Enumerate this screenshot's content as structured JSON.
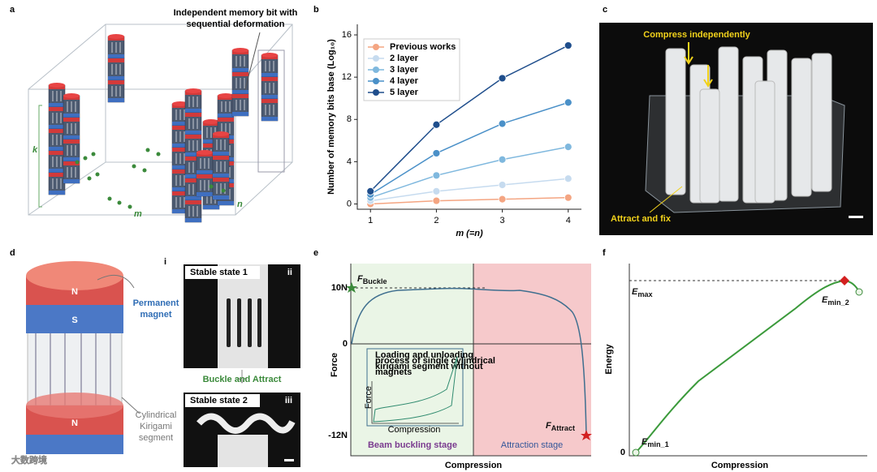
{
  "panel_labels": [
    "a",
    "b",
    "c",
    "d",
    "e",
    "f"
  ],
  "panel_a": {
    "annotation": [
      "Independent memory bit with",
      "sequential deformation"
    ],
    "k": "k",
    "m": "m",
    "n": "n"
  },
  "chart_data": {
    "type": "line",
    "x": [
      1,
      2,
      3,
      4
    ],
    "xlim": [
      0.8,
      4.2
    ],
    "xticks": [
      1,
      2,
      3,
      4
    ],
    "ylim": [
      -0.5,
      17
    ],
    "yticks": [
      0,
      4,
      8,
      12,
      16
    ],
    "xlabel": "m (=n)",
    "ylabel": "Number of memory bits base (Log₁₀)",
    "legend": "upper left",
    "series": [
      {
        "name": "Previous works",
        "color": "#f4a582",
        "values": [
          0,
          0.3,
          0.45,
          0.6
        ]
      },
      {
        "name": "2 layer",
        "color": "#c6dbef",
        "values": [
          0.3,
          1.2,
          1.8,
          2.4
        ]
      },
      {
        "name": "3 layer",
        "color": "#7fb8de",
        "values": [
          0.6,
          2.7,
          4.2,
          5.4
        ]
      },
      {
        "name": "4 layer",
        "color": "#4a90c8",
        "values": [
          0.9,
          4.8,
          7.6,
          9.6
        ]
      },
      {
        "name": "5 layer",
        "color": "#1f4e8c",
        "values": [
          1.2,
          7.5,
          11.9,
          15.0
        ]
      }
    ]
  },
  "panel_c": {
    "top": "Compress independently",
    "bottom": "Attract and fix"
  },
  "panel_d": {
    "top_magnet": [
      "N",
      "S"
    ],
    "bottom_magnet": "N",
    "magnet_label": [
      "Permanent",
      "magnet"
    ],
    "segment_label": [
      "Cylindrical",
      "Kirigami",
      "segment"
    ],
    "sub_label": "i",
    "state1": "Stable state 1",
    "state1_tag": "ii",
    "transition": "Buckle and Attract",
    "state2": "Stable state 2",
    "state2_tag": "iii",
    "watermark": "大数跨境"
  },
  "panel_e": {
    "yticks": [
      "10N",
      "0",
      "-12N"
    ],
    "ylabel": "Force",
    "xlabel": "Compression",
    "buckle": {
      "main": "F",
      "sub": "Buckle"
    },
    "attract": {
      "main": "F",
      "sub": "Attract"
    },
    "stage1": "Beam buckling stage",
    "stage2": "Attraction stage",
    "inset": {
      "text": [
        "Loading and unloading",
        "process of single  cylindrical",
        "kirigami segment without",
        "magnets"
      ],
      "ylabel": "Force",
      "xlabel": "Compression"
    }
  },
  "panel_f": {
    "ylabel": "Energy",
    "xlabel": "Compression",
    "zero": "0",
    "emax": {
      "main": "E",
      "sub": "max"
    },
    "emin2": {
      "main": "E",
      "sub": "min_2"
    },
    "emin1": {
      "main": "E",
      "sub": "min_1"
    }
  }
}
